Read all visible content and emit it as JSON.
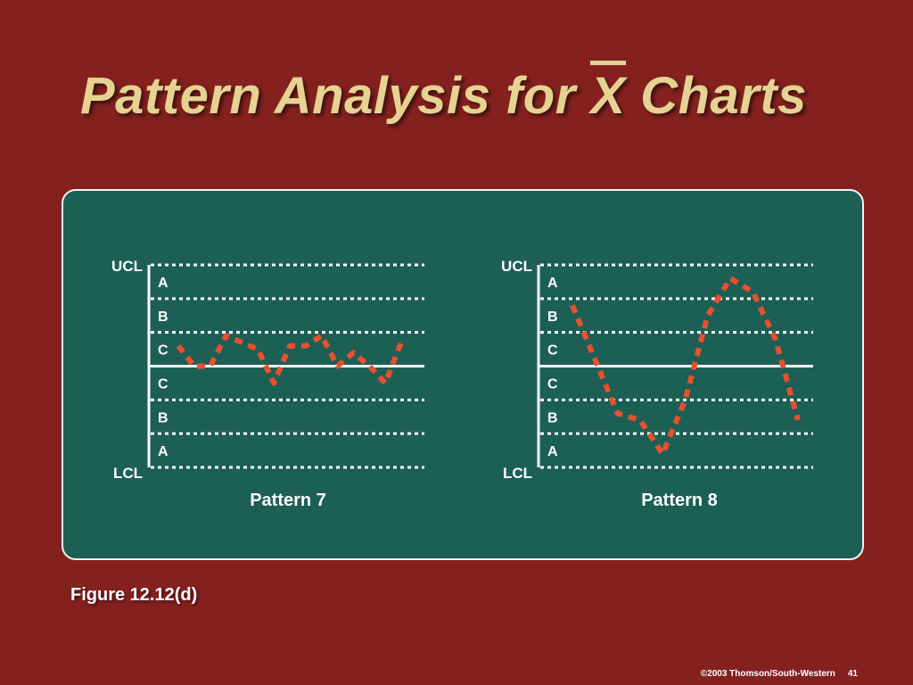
{
  "slide": {
    "title_before": "Pattern Analysis for ",
    "title_x": "X",
    "title_after": " Charts",
    "caption": "Figure 12.12(d)",
    "copyright": "©2003 Thomson/South-Western",
    "page_number": "41"
  },
  "colors": {
    "background": "#84211f",
    "panel": "#1c5f55",
    "title": "#e6d293",
    "series": "#e8502e",
    "grid": "#ffffff"
  },
  "chart_data": [
    {
      "type": "line",
      "title": "Pattern 7",
      "ucl_label": "UCL",
      "lcl_label": "LCL",
      "zone_labels": [
        "A",
        "B",
        "C",
        "C",
        "B",
        "A"
      ],
      "ylim": [
        -3,
        3
      ],
      "x": [
        0,
        1,
        2,
        3,
        4,
        5,
        6,
        7,
        8,
        9,
        10,
        11,
        12,
        13,
        14
      ],
      "values": [
        0.6,
        0.0,
        0.0,
        0.9,
        0.7,
        0.5,
        -0.5,
        0.6,
        0.6,
        0.9,
        0.0,
        0.4,
        0.0,
        -0.5,
        0.7
      ]
    },
    {
      "type": "line",
      "title": "Pattern 8",
      "ucl_label": "UCL",
      "lcl_label": "LCL",
      "zone_labels": [
        "A",
        "B",
        "C",
        "C",
        "B",
        "A"
      ],
      "ylim": [
        -3,
        3
      ],
      "x": [
        0,
        1,
        2,
        3,
        4,
        5,
        6,
        7,
        8,
        9,
        10
      ],
      "values": [
        1.8,
        0.2,
        -1.4,
        -1.6,
        -2.6,
        -1.0,
        1.5,
        2.6,
        2.2,
        0.8,
        -1.6
      ]
    }
  ]
}
